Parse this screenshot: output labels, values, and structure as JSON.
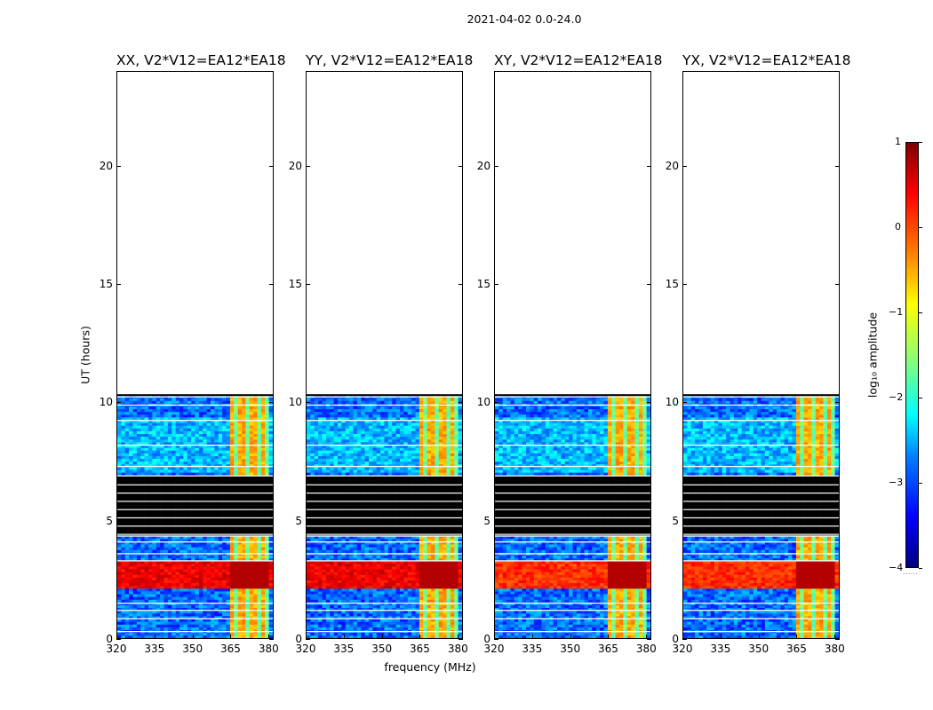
{
  "chart_data": {
    "type": "heatmap",
    "suptitle": "2021-04-02 0.0-24.0",
    "xlabel": "frequency (MHz)",
    "ylabel": "UT (hours)",
    "xlim": [
      320,
      382
    ],
    "ylim": [
      0,
      24
    ],
    "x_ticks": [
      "320",
      "335",
      "350",
      "365",
      "380"
    ],
    "x_tick_values": [
      320,
      335,
      350,
      365,
      380
    ],
    "y_ticks": [
      "0",
      "5",
      "10",
      "15",
      "20"
    ],
    "y_tick_values": [
      0,
      5,
      10,
      15,
      20
    ],
    "panels": [
      {
        "title": "XX, V2*V12=EA12*EA18"
      },
      {
        "title": "YY, V2*V12=EA12*EA18"
      },
      {
        "title": "XY, V2*V12=EA12*EA18"
      },
      {
        "title": "YX, V2*V12=EA12*EA18"
      }
    ],
    "data_time_range_hours": [
      0,
      10.3
    ],
    "flagged_time_range_hours": [
      4.3,
      6.8
    ],
    "rfi_frequency_range_mhz": [
      364,
      380
    ],
    "strong_time_range_hours": [
      2.0,
      3.2
    ],
    "colorbar": {
      "label": "log₁₀ amplitude",
      "range": [
        -4,
        1
      ],
      "ticks": [
        "1",
        "0",
        "−1",
        "−2",
        "−3",
        "−4"
      ],
      "tick_values": [
        1,
        0,
        -1,
        -2,
        -3,
        -4
      ],
      "note": "......"
    }
  }
}
